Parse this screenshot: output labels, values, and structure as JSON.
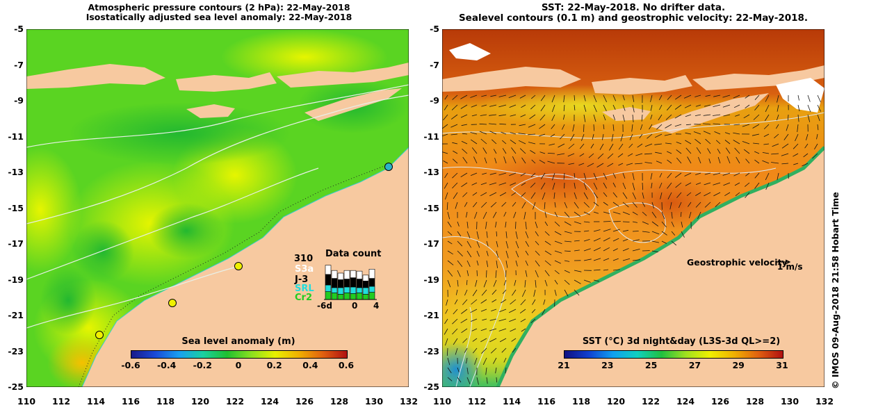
{
  "left_panel": {
    "title_line1": "Atmospheric pressure contours (2 hPa): 22-May-2018",
    "title_line2": "Isostatically adjusted sea level anomaly: 22-May-2018",
    "y_ticks": [
      "-5",
      "-7",
      "-9",
      "-11",
      "-13",
      "-15",
      "-17",
      "-19",
      "-21",
      "-23",
      "-25"
    ],
    "x_ticks": [
      "110",
      "112",
      "114",
      "116",
      "118",
      "120",
      "122",
      "124",
      "126",
      "128",
      "130",
      "132"
    ],
    "colorbar": {
      "title": "Sea level anomaly (m)",
      "ticks": [
        "-0.6",
        "-0.4",
        "-0.2",
        "0",
        "0.2",
        "0.4",
        "0.6"
      ]
    },
    "data_count": {
      "title": "Data count",
      "max_label": "310",
      "missions": [
        "S3a",
        "J-3",
        "SRL",
        "Cr2"
      ],
      "mission_colors": [
        "#ffffff",
        "#000000",
        "#22dddd",
        "#22cc22"
      ],
      "x_axis": [
        "-6d",
        "0",
        "4"
      ]
    }
  },
  "right_panel": {
    "title_line1": "SST: 22-May-2018. No drifter data.",
    "title_line2": "Sealevel contours (0.1 m) and geostrophic velocity: 22-May-2018.",
    "y_ticks": [
      "-5",
      "-7",
      "-9",
      "-11",
      "-13",
      "-15",
      "-17",
      "-19",
      "-21",
      "-23",
      "-25"
    ],
    "x_ticks": [
      "110",
      "112",
      "114",
      "116",
      "118",
      "120",
      "122",
      "124",
      "126",
      "128",
      "130",
      "132"
    ],
    "colorbar": {
      "title": "SST (°C) 3d night&day (L3S-3d QL>=2)",
      "ticks": [
        "21",
        "23",
        "25",
        "27",
        "29",
        "31"
      ]
    },
    "velocity_label": "Geostrophic velocity",
    "velocity_unit": "1 m/s"
  },
  "credit": "© IMOS 09-Aug-2018 21:58 Hobart Time",
  "colors": {
    "land": "#f7c9a0",
    "sla_green": "#4fcf1f",
    "sla_yellow": "#d8f000",
    "sst_orange": "#f08a10",
    "sst_red": "#c04000"
  }
}
